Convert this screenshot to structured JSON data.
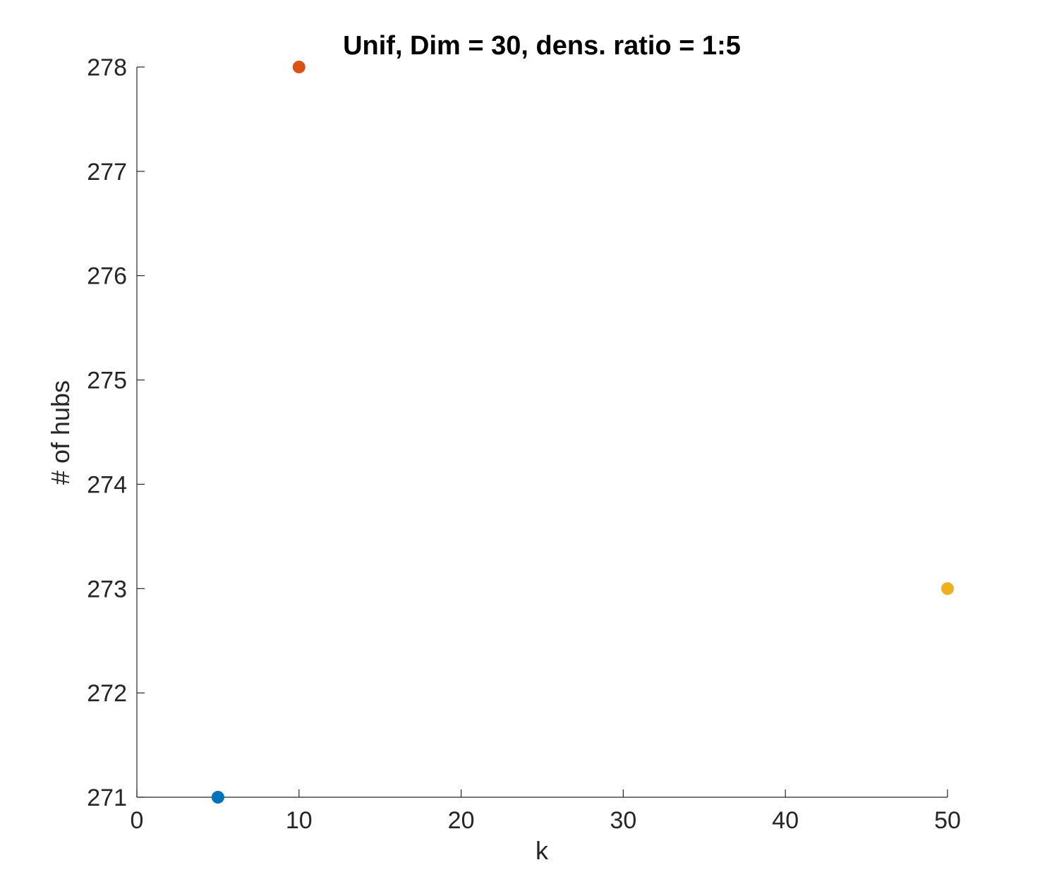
{
  "chart_data": {
    "type": "scatter",
    "title": "Unif, Dim = 30, dens. ratio = 1:5",
    "xlabel": "k",
    "ylabel": "# of hubs",
    "xlim": [
      0,
      50
    ],
    "ylim": [
      271,
      278
    ],
    "xticks": [
      "0",
      "10",
      "20",
      "30",
      "40",
      "50"
    ],
    "yticks": [
      "271",
      "272",
      "273",
      "274",
      "275",
      "276",
      "277",
      "278"
    ],
    "grid": false,
    "points": [
      {
        "x": 5,
        "y": 271,
        "color": "#0072BD"
      },
      {
        "x": 10,
        "y": 278,
        "color": "#D95319"
      },
      {
        "x": 50,
        "y": 273,
        "color": "#EDB120"
      }
    ]
  }
}
